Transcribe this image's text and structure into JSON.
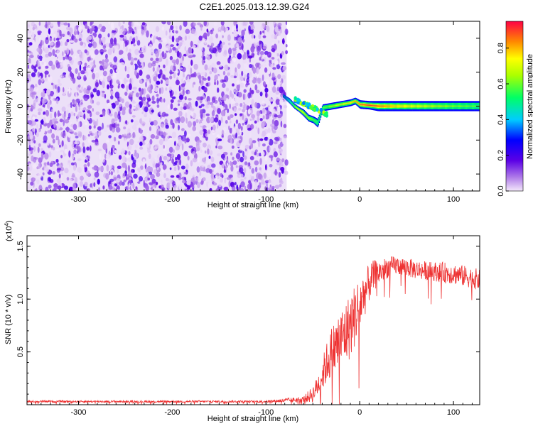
{
  "title": "C2E1.2025.013.12.39.G24",
  "colors": {
    "snr_line": "#ee3333",
    "axis": "#000000"
  },
  "chart_data": [
    {
      "type": "heatmap",
      "xlabel": "Height of straight line (km)",
      "ylabel": "Frequency (Hz)",
      "xlim": [
        -355,
        128
      ],
      "ylim": [
        -50,
        50
      ],
      "x_ticks": [
        -300,
        -200,
        -100,
        0,
        100
      ],
      "y_ticks": [
        -40,
        -20,
        0,
        20,
        40
      ],
      "colorbar": {
        "label": "Normalized spectral amplitude",
        "range": [
          0.0,
          0.95
        ],
        "ticks": [
          0.0,
          0.2,
          0.4,
          0.6,
          0.8
        ],
        "colormap": "rainbow"
      },
      "noise_region": {
        "x": [
          -355,
          -78
        ],
        "y": [
          -50,
          50
        ],
        "amplitude_max": 0.2
      },
      "signal_trace": {
        "x": [
          -82,
          -75,
          -70,
          -65,
          -60,
          -55,
          -50,
          -45,
          -40,
          -30,
          -20,
          -10,
          -5,
          0,
          10,
          20,
          40,
          60,
          80,
          100,
          128
        ],
        "frequency": [
          6,
          3,
          0,
          -2,
          -4,
          -7,
          -8,
          -10,
          -1,
          0,
          1,
          2,
          3,
          1,
          0.5,
          0,
          0,
          0,
          0,
          0,
          0
        ],
        "amplitude": [
          0.3,
          0.45,
          0.65,
          0.8,
          0.75,
          0.7,
          0.65,
          0.55,
          0.6,
          0.7,
          0.75,
          0.8,
          0.85,
          0.9,
          0.95,
          0.9,
          0.8,
          0.75,
          0.7,
          0.65,
          0.6
        ],
        "width_hz": [
          2,
          3,
          3,
          3,
          4,
          4,
          4,
          5,
          4,
          4,
          4,
          4,
          4,
          5,
          5,
          6,
          6,
          6,
          6,
          6,
          6
        ]
      }
    },
    {
      "type": "line",
      "xlabel": "Height of straight line (km)",
      "ylabel": "SNR (10 * v/v)",
      "y_multiplier": "(x10",
      "y_multiplier_exp": "4",
      "y_multiplier_close": ")",
      "xlim": [
        -355,
        128
      ],
      "ylim": [
        0.0,
        1.6
      ],
      "x_ticks": [
        -300,
        -200,
        -100,
        0,
        100
      ],
      "y_ticks": [
        0.5,
        1.0,
        1.5
      ],
      "series": [
        {
          "x": [
            -355,
            -300,
            -200,
            -100,
            -60,
            -50,
            -45,
            -40,
            -35,
            -30,
            -25,
            -20,
            -15,
            -10,
            -5,
            0,
            5,
            10,
            15,
            20,
            30,
            40,
            50,
            60,
            70,
            80,
            90,
            100,
            110,
            120,
            128
          ],
          "y": [
            0.03,
            0.03,
            0.03,
            0.03,
            0.05,
            0.1,
            0.18,
            0.28,
            0.4,
            0.5,
            0.55,
            0.62,
            0.68,
            0.75,
            0.85,
            0.95,
            1.05,
            1.15,
            1.22,
            1.25,
            1.3,
            1.32,
            1.3,
            1.28,
            1.27,
            1.26,
            1.25,
            1.24,
            1.22,
            1.2,
            1.18
          ],
          "spread": [
            0.01,
            0.01,
            0.01,
            0.01,
            0.03,
            0.08,
            0.1,
            0.15,
            0.2,
            0.25,
            0.28,
            0.3,
            0.3,
            0.32,
            0.3,
            0.28,
            0.22,
            0.18,
            0.15,
            0.12,
            0.1,
            0.09,
            0.09,
            0.09,
            0.09,
            0.09,
            0.1,
            0.1,
            0.1,
            0.1,
            0.1
          ]
        }
      ]
    }
  ]
}
